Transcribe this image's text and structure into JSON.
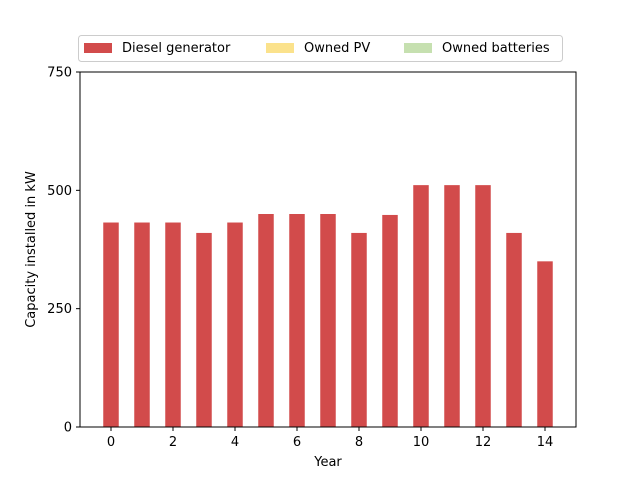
{
  "chart_data": {
    "type": "bar",
    "xlabel": "Year",
    "ylabel": "Capacity installed in kW",
    "x": [
      0,
      1,
      2,
      3,
      4,
      5,
      6,
      7,
      8,
      9,
      10,
      11,
      12,
      13,
      14
    ],
    "xticks": [
      0,
      2,
      4,
      6,
      8,
      10,
      12,
      14
    ],
    "xlim": [
      -1,
      15
    ],
    "ylim": [
      0,
      750
    ],
    "yticks": [
      0,
      250,
      500,
      750
    ],
    "grid": false,
    "legend_position": "top",
    "series": [
      {
        "name": "Diesel generator",
        "color": "#d24b4b",
        "values": [
          432,
          432,
          432,
          410,
          432,
          450,
          450,
          450,
          410,
          448,
          511,
          511,
          511,
          410,
          350
        ]
      },
      {
        "name": "Owned PV",
        "color": "#fbe28c",
        "values": [
          0,
          0,
          0,
          0,
          0,
          0,
          0,
          0,
          0,
          0,
          0,
          0,
          0,
          0,
          0
        ]
      },
      {
        "name": "Owned batteries",
        "color": "#c6e0b0",
        "values": [
          0,
          0,
          0,
          0,
          0,
          0,
          0,
          0,
          0,
          0,
          0,
          0,
          0,
          0,
          0
        ]
      }
    ]
  }
}
